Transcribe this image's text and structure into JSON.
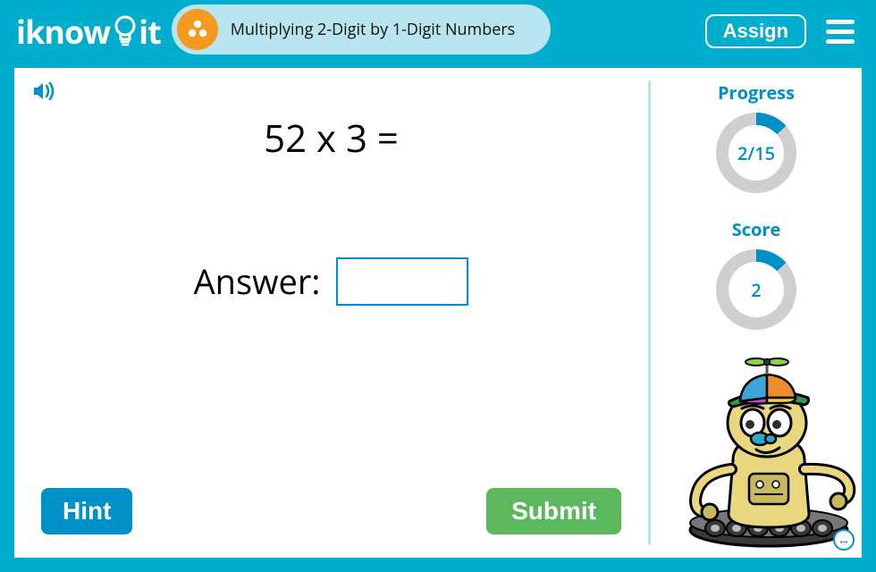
{
  "brand": {
    "name_part1": "iknow",
    "name_part2": "it"
  },
  "header": {
    "lesson_title": "Multiplying 2-Digit by 1-Digit Numbers",
    "assign_label": "Assign"
  },
  "question": {
    "expression": "52 x 3 =",
    "answer_label": "Answer:",
    "answer_value": ""
  },
  "buttons": {
    "hint": "Hint",
    "submit": "Submit"
  },
  "progress": {
    "label": "Progress",
    "current": 2,
    "total": 15,
    "text": "2/15",
    "fraction": 0.1333,
    "ring_color": "#0090c8",
    "track_color": "#cfcfcf"
  },
  "score": {
    "label": "Score",
    "value": 2,
    "text": "2",
    "fraction": 0.1333,
    "ring_color": "#0090c8",
    "track_color": "#cfcfcf"
  },
  "colors": {
    "bg": "#00adcc",
    "pill_bg": "#b8e5f0",
    "accent": "#0090c8",
    "orange": "#f39a1f",
    "submit": "#5cb85c",
    "white": "#ffffff"
  },
  "robot": {
    "body": "#e8d77e",
    "body_shadow": "#c9b85f",
    "hat_brim": "#2e9b4f",
    "hat_panel1": "#f08c2e",
    "hat_panel2": "#3ea5d9",
    "hat_panel3": "#b94fc9",
    "hat_panel4": "#f2d13c",
    "propeller": "#8fd14f",
    "propeller_stem": "#555",
    "eye_white": "#fff",
    "eye_iris": "#2e2e2e",
    "nose": "#2aa7c9",
    "tread": "#3a3a3a",
    "tread_light": "#767676"
  }
}
